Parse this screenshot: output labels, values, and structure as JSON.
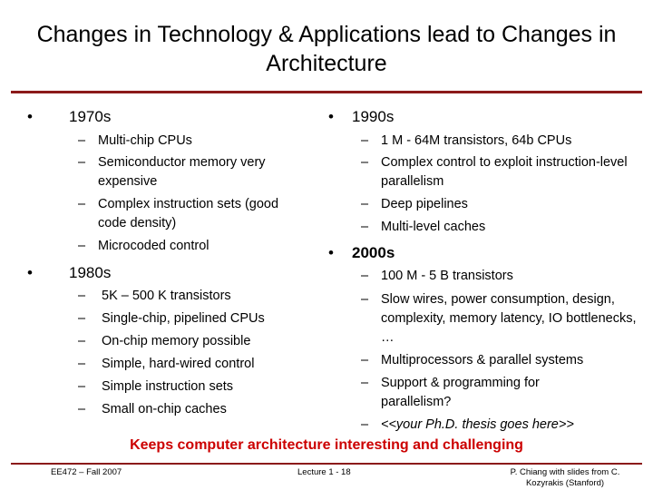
{
  "slide": {
    "title": "Changes in Technology & Applications lead to Changes in Architecture",
    "bullet_char": "•",
    "dash_char": "–",
    "left": {
      "s1970": {
        "heading": "1970s",
        "items": [
          "Multi-chip CPUs",
          "Semiconductor memory very expensive",
          "Complex instruction sets (good code density)",
          "Microcoded control"
        ]
      },
      "s1980": {
        "heading": "1980s",
        "items": [
          "5K – 500 K transistors",
          "Single-chip, pipelined CPUs",
          "On-chip memory possible",
          "Simple, hard-wired control",
          "Simple instruction sets",
          "Small on-chip caches"
        ]
      }
    },
    "right": {
      "s1990": {
        "heading": "1990s",
        "items": [
          "1 M - 64M transistors, 64b CPUs",
          "Complex control to exploit instruction-level parallelism",
          "Deep pipelines",
          "Multi-level caches"
        ]
      },
      "s2000": {
        "heading": "2000s",
        "items": [
          "100 M - 5 B transistors",
          "Slow wires, power consumption, design, complexity, memory latency, IO bottlenecks, …",
          "Multiprocessors & parallel systems",
          "Support & programming for parallelism?",
          "<<your Ph.D. thesis goes here>>"
        ]
      }
    },
    "tagline": "Keeps computer architecture interesting and challenging",
    "footer": {
      "course": "EE472 – Fall 2007",
      "lecture": "Lecture 1 - 18",
      "credit": "P. Chiang with slides from C. Kozyrakis (Stanford)"
    }
  }
}
